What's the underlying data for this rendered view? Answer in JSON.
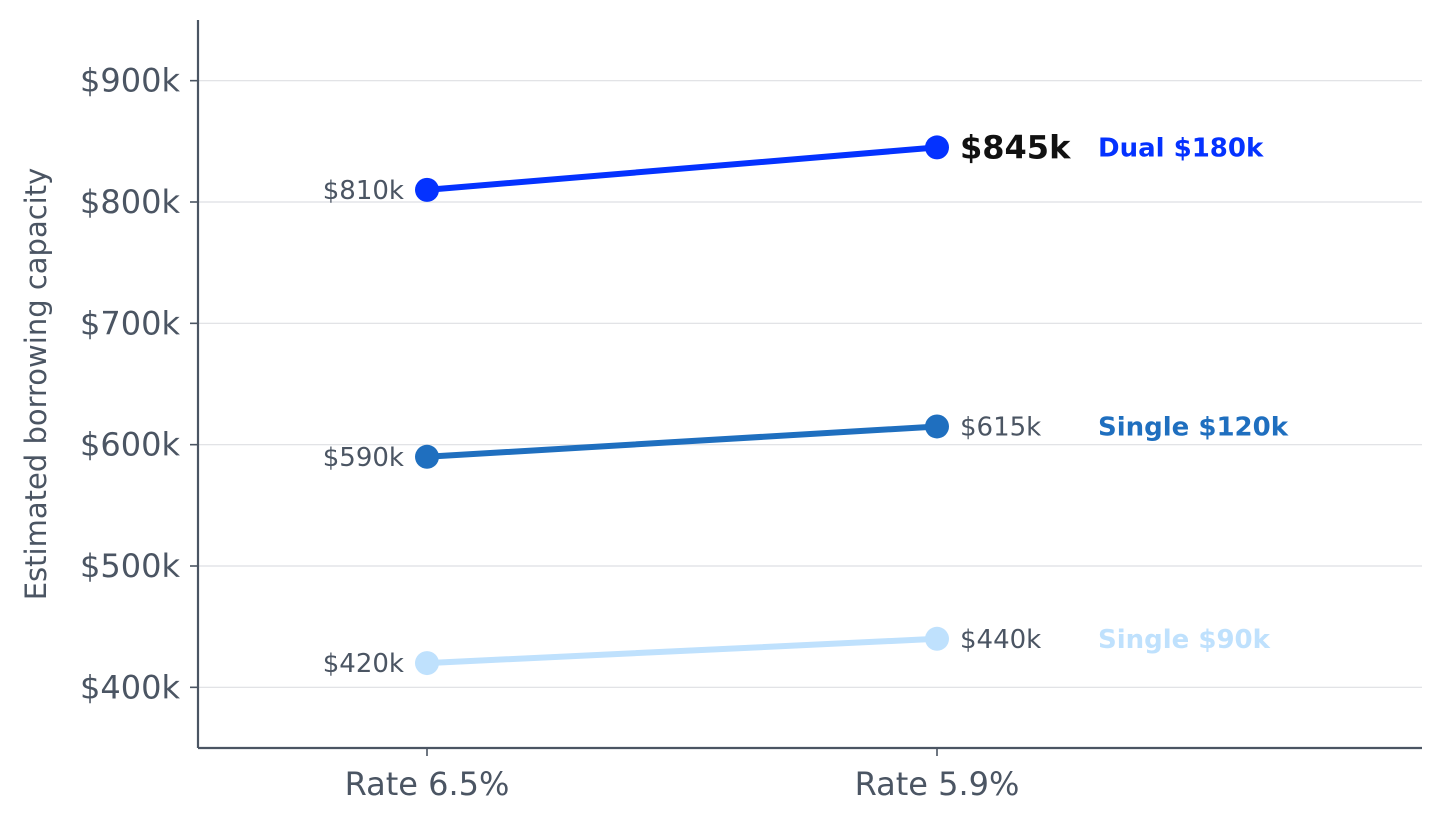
{
  "chart_data": {
    "type": "line",
    "title": "",
    "xlabel": "",
    "ylabel": "Estimated borrowing capacity",
    "categories": [
      "Rate 6.5%",
      "Rate 5.9%"
    ],
    "y_ticks": [
      {
        "value": 400,
        "label": "$400k"
      },
      {
        "value": 500,
        "label": "$500k"
      },
      {
        "value": 600,
        "label": "$600k"
      },
      {
        "value": 700,
        "label": "$700k"
      },
      {
        "value": 800,
        "label": "$800k"
      },
      {
        "value": 900,
        "label": "$900k"
      }
    ],
    "ylim": [
      350,
      950
    ],
    "grid": "horizontal",
    "legend": "none",
    "series": [
      {
        "name": "Dual $180k",
        "color": "#0432ff",
        "values": [
          810,
          845
        ],
        "value_labels": [
          "$810k",
          "$845k"
        ],
        "highlight_last": true
      },
      {
        "name": "Single $120k",
        "color": "#1f6fbf",
        "values": [
          590,
          615
        ],
        "value_labels": [
          "$590k",
          "$615k"
        ],
        "highlight_last": false
      },
      {
        "name": "Single $90k",
        "color": "#bfe1fd",
        "values": [
          420,
          440
        ],
        "value_labels": [
          "$420k",
          "$440k"
        ],
        "highlight_last": false
      }
    ]
  }
}
